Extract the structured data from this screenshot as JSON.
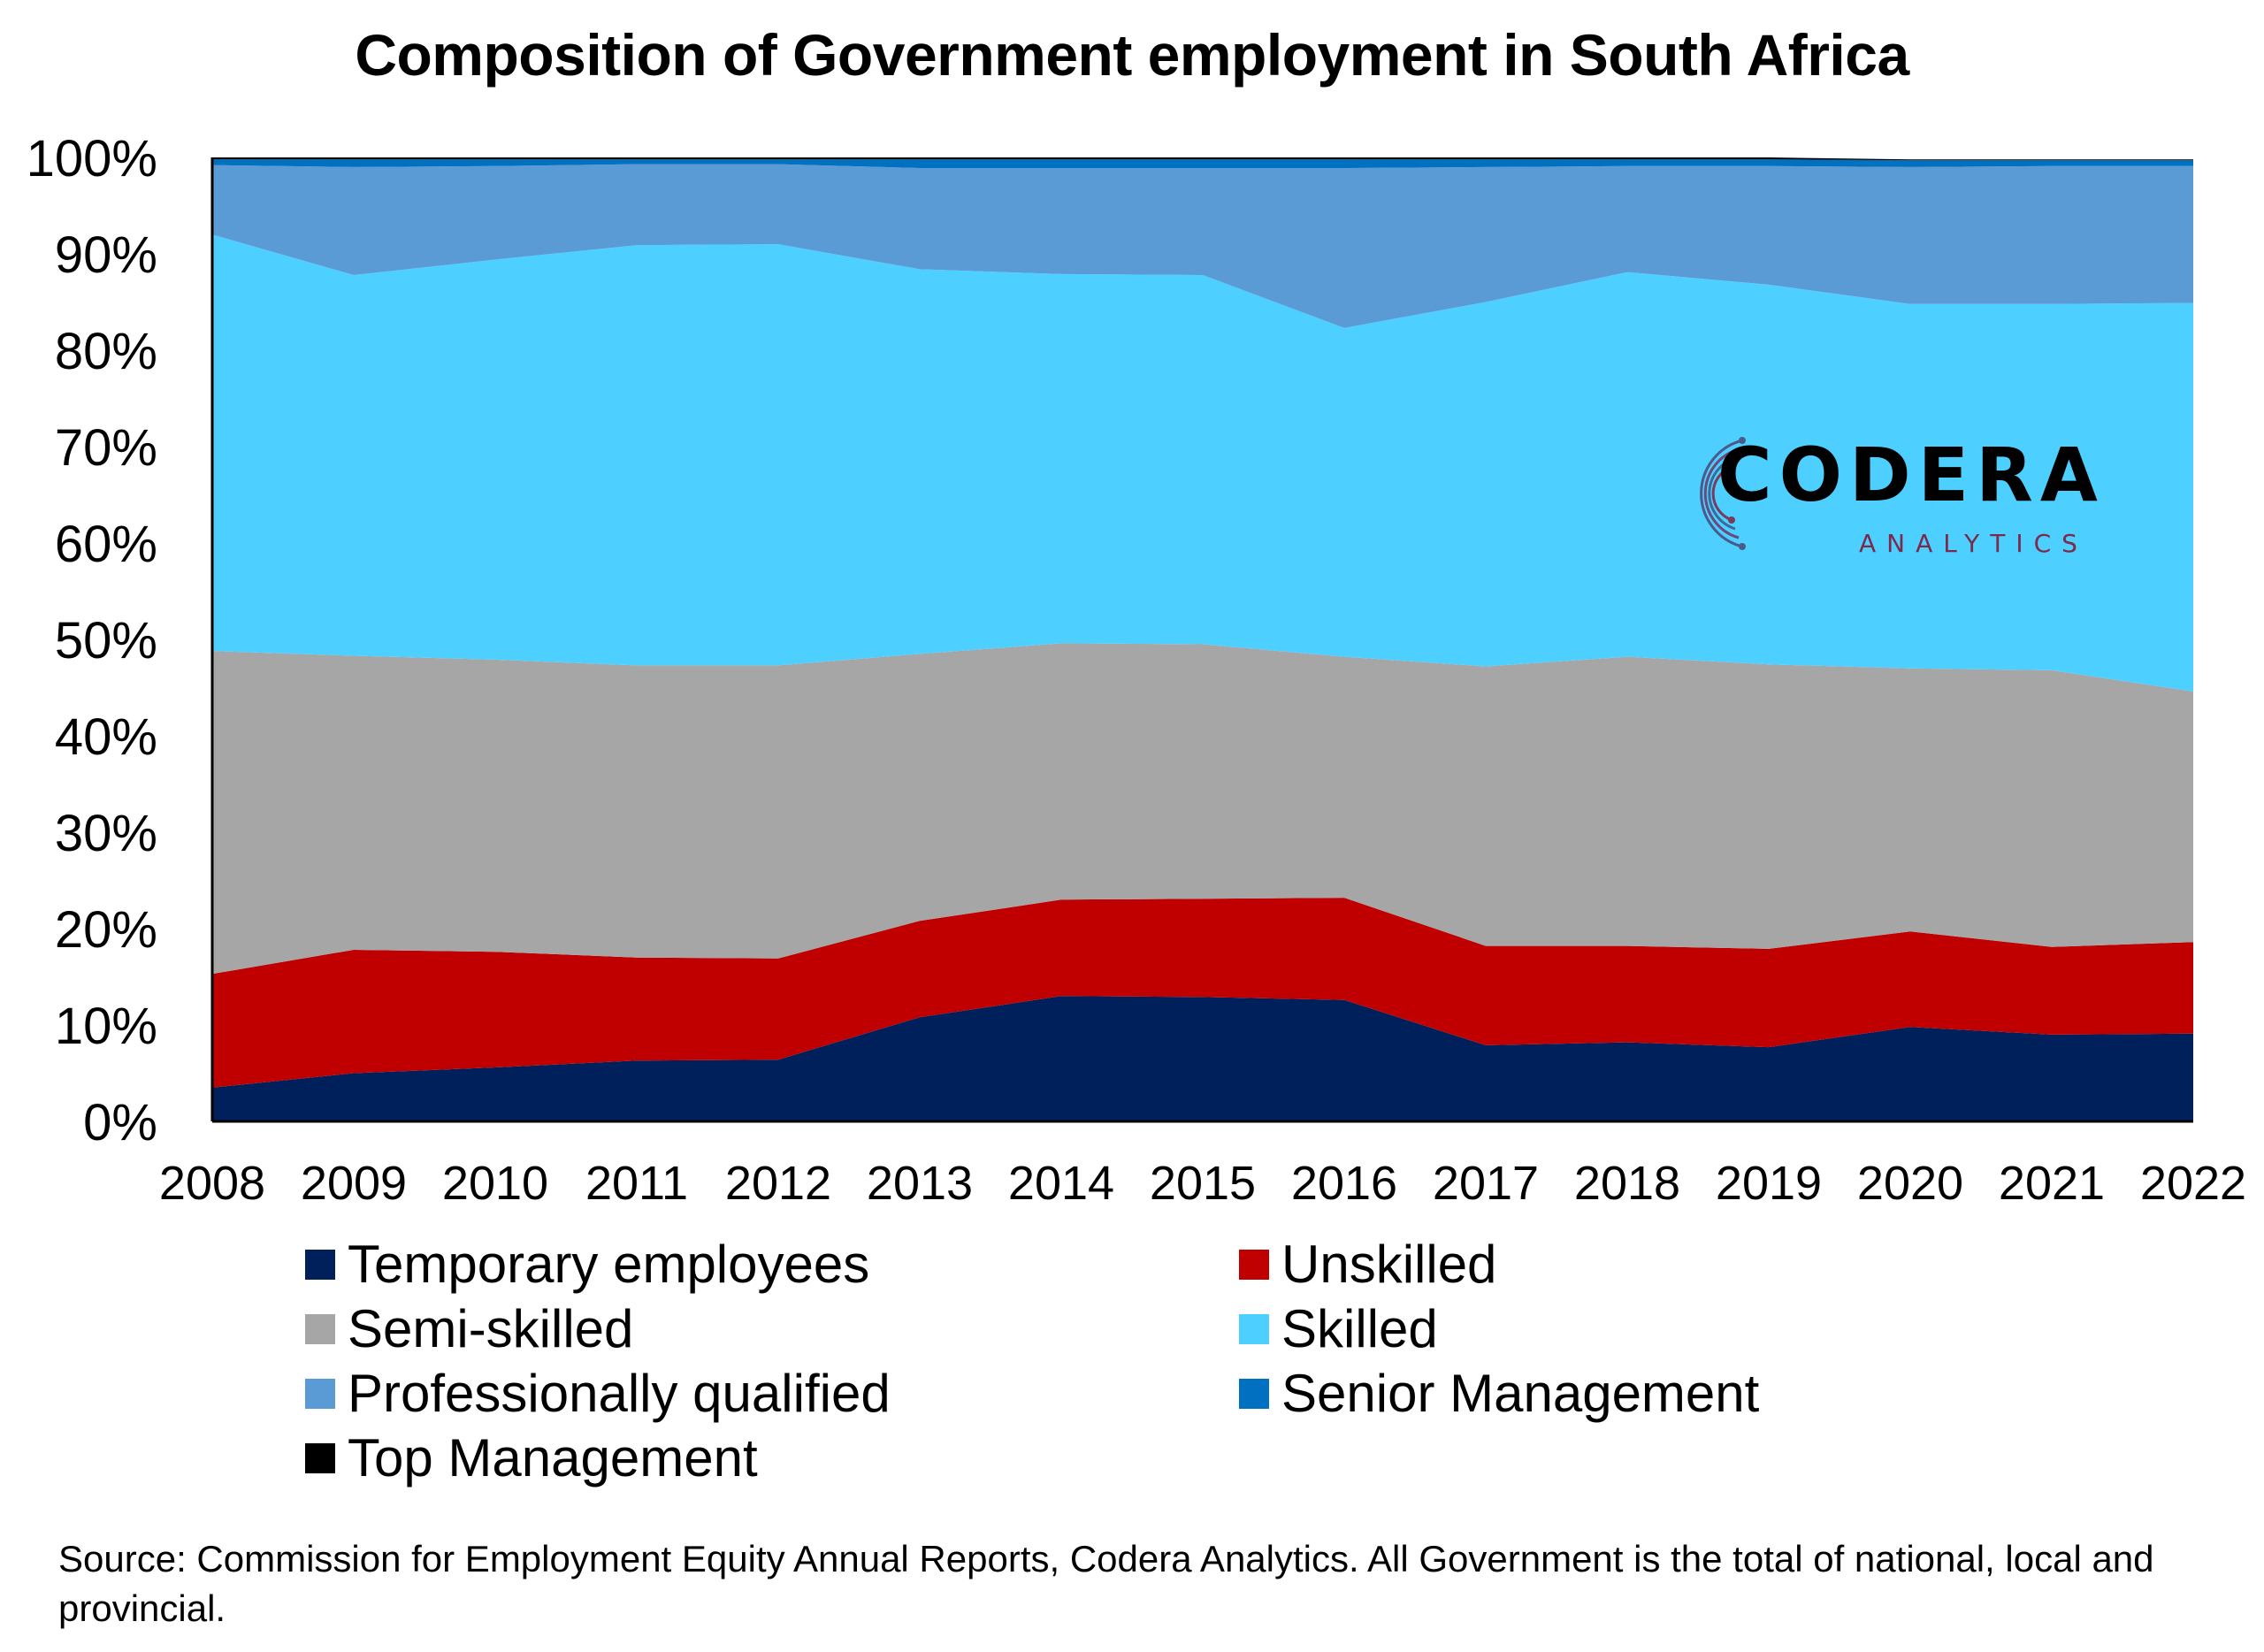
{
  "chart_data": {
    "type": "area",
    "stacked": true,
    "percent": true,
    "title": "Composition of Government employment in South Africa",
    "categories": [
      "2008",
      "2009",
      "2010",
      "2011",
      "2012",
      "2013",
      "2014",
      "2015",
      "2016",
      "2017",
      "2018",
      "2019",
      "2020",
      "2021",
      "2022"
    ],
    "y_ticks": [
      "0%",
      "10%",
      "20%",
      "30%",
      "40%",
      "50%",
      "60%",
      "70%",
      "80%",
      "90%",
      "100%"
    ],
    "ylim": [
      0,
      100
    ],
    "grid": false,
    "legend_position": "bottom",
    "series": [
      {
        "name": "Temporary employees",
        "color": "#00205b",
        "values": [
          3.5,
          5.0,
          5.6,
          6.3,
          6.4,
          10.8,
          13.0,
          12.9,
          12.6,
          7.9,
          8.2,
          7.7,
          9.8,
          9.0,
          9.1
        ]
      },
      {
        "name": "Unskilled",
        "color": "#c00000",
        "values": [
          11.8,
          12.8,
          12.0,
          10.7,
          10.5,
          10.0,
          10.0,
          10.2,
          10.6,
          10.3,
          10.0,
          10.2,
          9.9,
          9.1,
          9.5
        ]
      },
      {
        "name": "Semi-skilled",
        "color": "#a6a6a6",
        "values": [
          33.5,
          30.5,
          30.3,
          30.3,
          30.4,
          27.7,
          26.6,
          26.4,
          25.0,
          29.0,
          30.0,
          29.5,
          27.3,
          28.7,
          26.0
        ]
      },
      {
        "name": "Skilled",
        "color": "#4dcfff",
        "values": [
          43.2,
          39.5,
          41.5,
          43.6,
          43.7,
          39.9,
          38.3,
          38.3,
          34.1,
          37.8,
          39.9,
          39.4,
          37.8,
          38.0,
          40.3
        ]
      },
      {
        "name": "Professionally qualified",
        "color": "#5b9bd5",
        "values": [
          7.2,
          11.2,
          9.7,
          8.4,
          8.3,
          10.5,
          11.0,
          11.1,
          16.6,
          14.0,
          11.0,
          12.3,
          14.2,
          14.3,
          14.2
        ]
      },
      {
        "name": "Senior Management",
        "color": "#0070c0",
        "values": [
          0.6,
          0.8,
          0.7,
          0.5,
          0.5,
          0.9,
          0.9,
          0.9,
          0.9,
          0.8,
          0.7,
          0.7,
          0.7,
          0.6,
          0.6
        ]
      },
      {
        "name": "Top Management",
        "color": "#000000",
        "values": [
          0.2,
          0.2,
          0.2,
          0.2,
          0.2,
          0.2,
          0.2,
          0.2,
          0.2,
          0.2,
          0.2,
          0.2,
          0.1,
          0.1,
          0.1
        ]
      }
    ]
  },
  "source_note": "Source: Commission for Employment Equity Annual Reports, Codera Analytics. All Government is the total of national, local and provincial.",
  "logo": {
    "word": "CODERA",
    "sub": "ANALYTICS"
  }
}
